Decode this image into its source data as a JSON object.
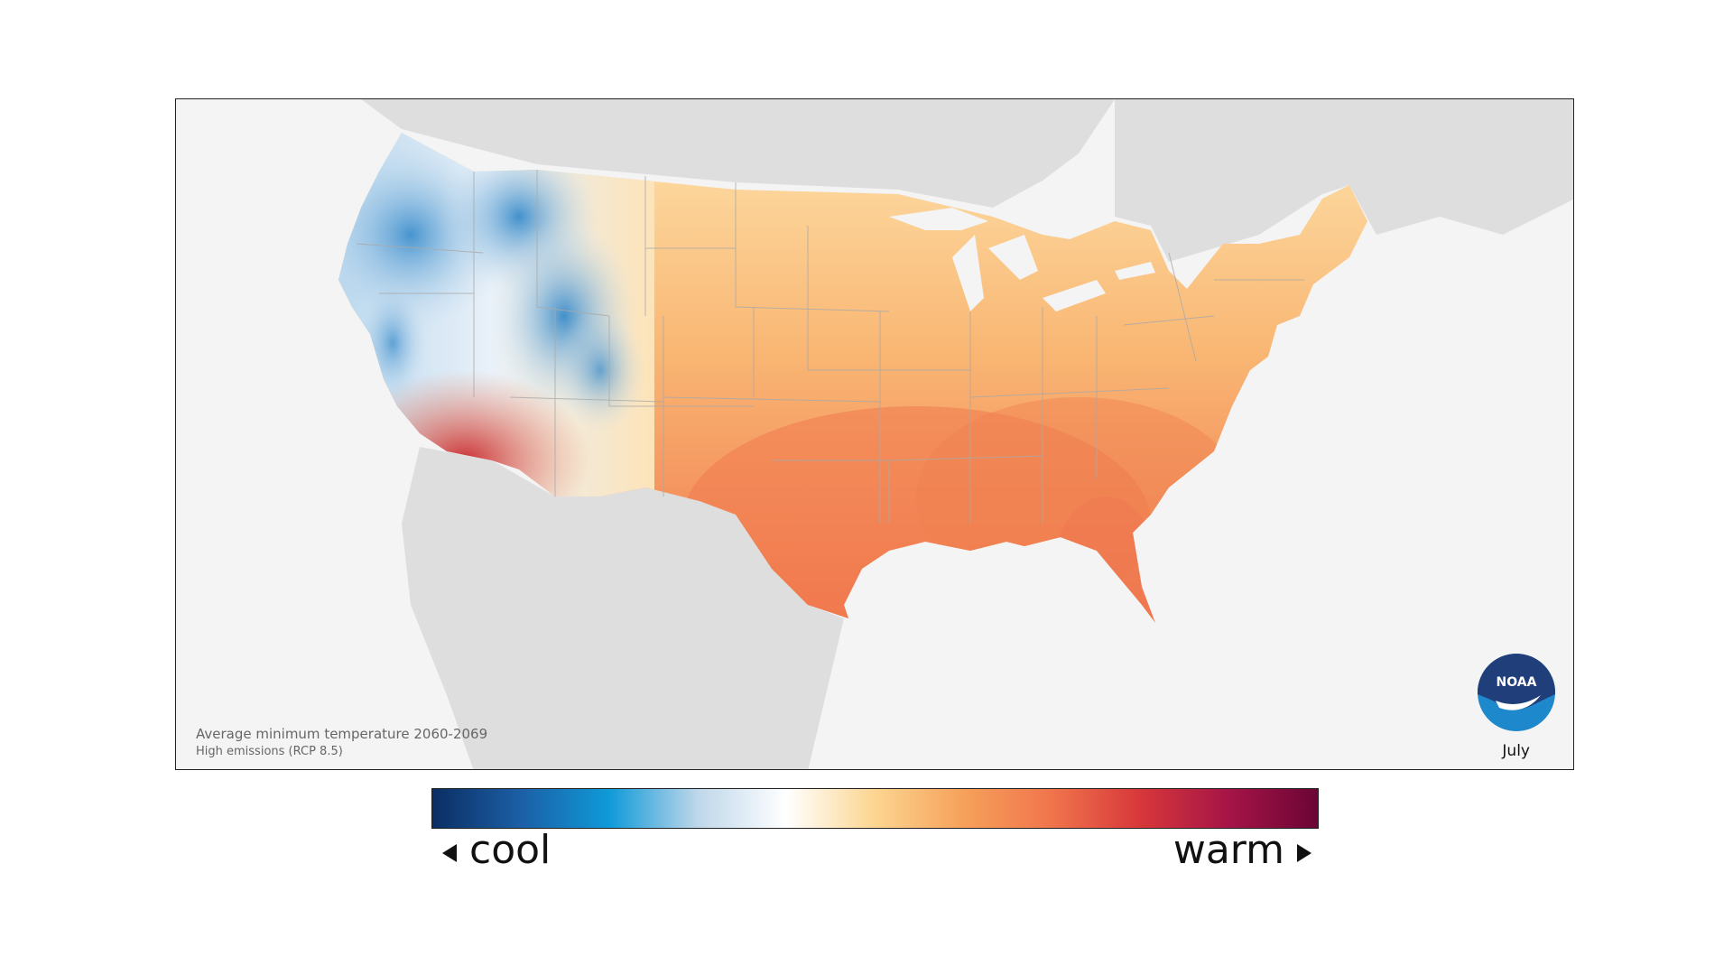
{
  "map": {
    "caption_title": "Average minimum temperature 2060-2069",
    "caption_subtitle": "High emissions (RCP 8.5)",
    "month": "July",
    "logo_text": "NOAA"
  },
  "legend": {
    "cool_label": "cool",
    "warm_label": "warm",
    "colors": [
      "#0b2e63",
      "#1c5fa6",
      "#0f9ad8",
      "#bfd7ea",
      "#ffffff",
      "#fcd590",
      "#f6a15a",
      "#f0744c",
      "#d7373a",
      "#a51447",
      "#6b0535"
    ]
  },
  "colors": {
    "land_other": "#dedede",
    "ocean": "#f4f4f4",
    "cool_region": "#5ba3d6",
    "warm_region": "#f49a5a",
    "hot_region": "#d9412f",
    "noaa_dark": "#1f3e7a",
    "noaa_light": "#1e88cc"
  }
}
